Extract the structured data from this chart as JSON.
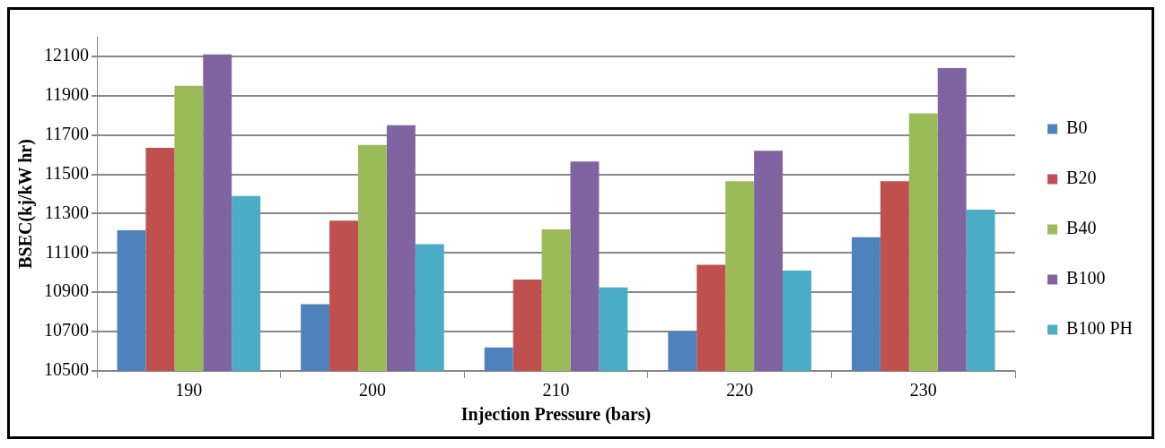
{
  "chart_data": {
    "type": "bar",
    "xlabel": "Injection Pressure (bars)",
    "ylabel": "BSEC(kj/kW hr)",
    "categories": [
      "190",
      "200",
      "210",
      "220",
      "230"
    ],
    "series": [
      {
        "name": "B0",
        "color": "#4f81bd",
        "values": [
          11215,
          10840,
          10620,
          10700,
          11180
        ]
      },
      {
        "name": "B20",
        "color": "#c0504d",
        "values": [
          11635,
          11265,
          10965,
          11040,
          11465
        ]
      },
      {
        "name": "B40",
        "color": "#9bbb59",
        "values": [
          11950,
          11650,
          11220,
          11465,
          11810
        ]
      },
      {
        "name": "B100",
        "color": "#8064a2",
        "values": [
          12110,
          11750,
          11565,
          11620,
          12040
        ]
      },
      {
        "name": "B100 PH",
        "color": "#4bacc6",
        "values": [
          11390,
          11145,
          10925,
          11010,
          11320
        ]
      }
    ],
    "ylim": [
      10500,
      12200
    ],
    "yticks": [
      10500,
      10700,
      10900,
      11100,
      11300,
      11500,
      11700,
      11900,
      12100
    ],
    "grid": "y",
    "legend": "right"
  }
}
